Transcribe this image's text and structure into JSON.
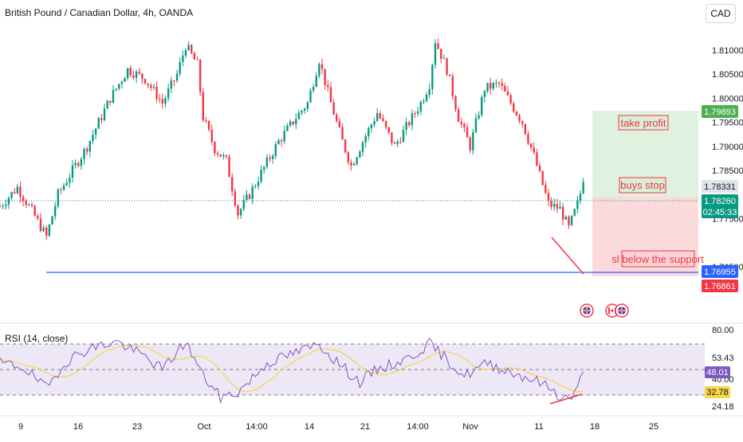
{
  "header": {
    "symbol_title": "British Pound / Canadian Dollar, 4h, OANDA",
    "currency_label": "CAD"
  },
  "rsi": {
    "title": "RSI (14, close)",
    "axis_ticks": [
      "80.00",
      "53.43",
      "40.00",
      "24.18"
    ],
    "badge_value": "48.01",
    "badge_ma": "32.78",
    "levels": [
      70,
      50,
      30
    ],
    "line_color": "#7e57c2",
    "ma_color": "#f7d64a",
    "band_color": "#ede7f6"
  },
  "annotations": {
    "take_profit": "take profit",
    "buys_stop": "buys stop",
    "stop_loss": "sl below the support"
  },
  "price_badges": {
    "take_profit": "1.79893",
    "entry": "1.78331",
    "current": "1.78260",
    "countdown": "02:45:33",
    "support": "1.76955",
    "stop": "1.76861"
  },
  "chart_data": {
    "type": "candlestick",
    "symbol": "GBPCAD",
    "timeframe": "4h",
    "y_ticks": [
      1.81,
      1.805,
      1.8,
      1.795,
      1.79,
      1.785,
      1.775,
      1.765
    ],
    "x_ticks": [
      "9",
      "16",
      "23",
      "Oct",
      "14:00",
      "14",
      "21",
      "14:00",
      "Nov",
      "11",
      "18",
      "25"
    ],
    "ylim": [
      1.764,
      1.8155
    ],
    "support_level": 1.76955,
    "take_profit": 1.79893,
    "entry": 1.78331,
    "stop_loss": 1.76861,
    "last_price": 1.7826,
    "up_color": "#089981",
    "down_color": "#f23645",
    "waypoints": [
      [
        0,
        1.7775
      ],
      [
        6,
        1.7815
      ],
      [
        12,
        1.7755
      ],
      [
        16,
        1.7712
      ],
      [
        20,
        1.78
      ],
      [
        26,
        1.786
      ],
      [
        30,
        1.79
      ],
      [
        34,
        1.795
      ],
      [
        38,
        1.8
      ],
      [
        44,
        1.806
      ],
      [
        50,
        1.804
      ],
      [
        56,
        1.799
      ],
      [
        61,
        1.805
      ],
      [
        64,
        1.811
      ],
      [
        68,
        1.807
      ],
      [
        70,
        1.796
      ],
      [
        74,
        1.7895
      ],
      [
        78,
        1.787
      ],
      [
        82,
        1.776
      ],
      [
        86,
        1.78
      ],
      [
        90,
        1.7845
      ],
      [
        96,
        1.791
      ],
      [
        102,
        1.796
      ],
      [
        106,
        1.799
      ],
      [
        110,
        1.808
      ],
      [
        114,
        1.799
      ],
      [
        118,
        1.791
      ],
      [
        121,
        1.786
      ],
      [
        125,
        1.791
      ],
      [
        130,
        1.797
      ],
      [
        136,
        1.79
      ],
      [
        140,
        1.794
      ],
      [
        145,
        1.799
      ],
      [
        148,
        1.803
      ],
      [
        150,
        1.812
      ],
      [
        154,
        1.806
      ],
      [
        158,
        1.796
      ],
      [
        162,
        1.79
      ],
      [
        167,
        1.802
      ],
      [
        172,
        1.803
      ],
      [
        176,
        1.799
      ],
      [
        180,
        1.795
      ],
      [
        184,
        1.788
      ],
      [
        189,
        1.778
      ],
      [
        193,
        1.777
      ],
      [
        196,
        1.773
      ],
      [
        199,
        1.778
      ],
      [
        201,
        1.7826
      ]
    ],
    "rsi_waypoints": [
      [
        0,
        55
      ],
      [
        8,
        52
      ],
      [
        16,
        35
      ],
      [
        22,
        55
      ],
      [
        30,
        66
      ],
      [
        40,
        72
      ],
      [
        50,
        60
      ],
      [
        56,
        50
      ],
      [
        64,
        72
      ],
      [
        70,
        45
      ],
      [
        76,
        28
      ],
      [
        82,
        32
      ],
      [
        92,
        55
      ],
      [
        104,
        65
      ],
      [
        110,
        70
      ],
      [
        118,
        52
      ],
      [
        124,
        40
      ],
      [
        130,
        50
      ],
      [
        140,
        58
      ],
      [
        148,
        70
      ],
      [
        152,
        62
      ],
      [
        160,
        45
      ],
      [
        168,
        55
      ],
      [
        176,
        48
      ],
      [
        184,
        42
      ],
      [
        190,
        35
      ],
      [
        194,
        27
      ],
      [
        198,
        30
      ],
      [
        201,
        48
      ]
    ],
    "rsi_levels": [
      70,
      50,
      30
    ],
    "rsi_last": 48.01,
    "rsi_ma_last": 32.78
  }
}
